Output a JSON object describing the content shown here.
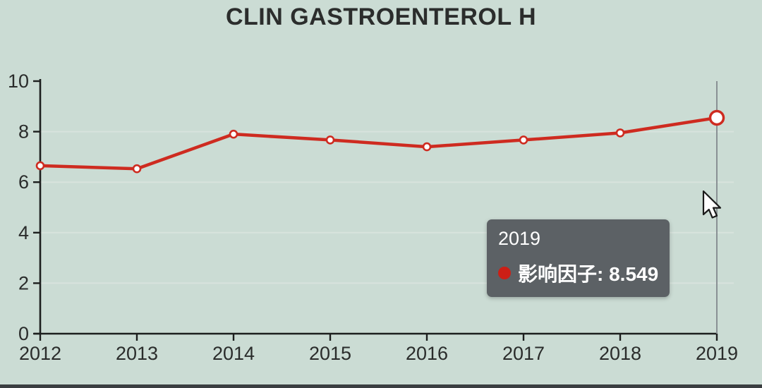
{
  "title": "CLIN GASTROENTEROL H",
  "chart_data": {
    "type": "line",
    "title": "CLIN GASTROENTEROL H",
    "x": [
      2012,
      2013,
      2014,
      2015,
      2016,
      2017,
      2018,
      2019
    ],
    "series": [
      {
        "name": "影响因子",
        "color": "#ce2b20",
        "values": [
          6.65,
          6.53,
          7.9,
          7.67,
          7.4,
          7.67,
          7.95,
          8.549
        ]
      }
    ],
    "xlabel": "",
    "ylabel": "",
    "ylim": [
      0,
      10
    ],
    "yticks": [
      0,
      2,
      4,
      6,
      8,
      10
    ],
    "gridline_values": [
      2,
      4,
      6,
      8
    ],
    "grid": true,
    "legend_visible": false,
    "highlighted_index": 7,
    "highlighted_value_label": "8.549"
  },
  "tooltip": {
    "year": "2019",
    "series_name": "影响因子",
    "label": "影响因子: 8.549"
  },
  "colors": {
    "background": "#cbdcd4",
    "line": "#ce2b20",
    "marker_fill": "#ffffff",
    "axis": "#1d1f1e",
    "tick_label": "#2a2c2b",
    "gridline": "#d8e3dd",
    "crosshair": "#899094",
    "tooltip_background": "#585d61",
    "tooltip_text": "#ffffff",
    "tooltip_dot": "#cc1f16",
    "bottom_bar": "#3a3e41"
  }
}
